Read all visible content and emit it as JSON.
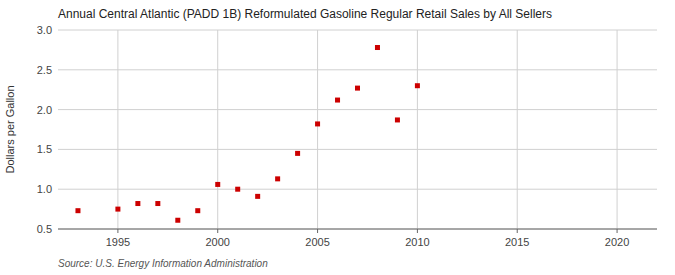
{
  "chart_data": {
    "type": "scatter",
    "title": "Annual Central Atlantic (PADD 1B) Reformulated Gasoline Regular Retail Sales by All Sellers",
    "y_label": "Dollars per Gallon",
    "source": "Source: U.S. Energy Information Administration",
    "x": [
      1993,
      1995,
      1996,
      1997,
      1998,
      1999,
      2000,
      2001,
      2002,
      2003,
      2004,
      2005,
      2006,
      2007,
      2008,
      2009,
      2010
    ],
    "values": [
      0.73,
      0.75,
      0.82,
      0.82,
      0.61,
      0.73,
      1.06,
      1.0,
      0.91,
      1.13,
      1.45,
      1.82,
      2.12,
      2.27,
      2.78,
      1.87,
      2.3
    ],
    "color": "#cc0000",
    "marker": "square",
    "xlim": [
      1992,
      2022
    ],
    "ylim": [
      0.5,
      3.0
    ],
    "xticks": [
      1995,
      2000,
      2005,
      2010,
      2015,
      2020
    ],
    "yticks": [
      0.5,
      {
        "value": 1.0,
        "label": "1.0"
      },
      1.5,
      {
        "value": 2.0,
        "label": "2.0"
      },
      2.5,
      {
        "value": 3.0,
        "label": "3.0"
      }
    ],
    "grid": true
  }
}
